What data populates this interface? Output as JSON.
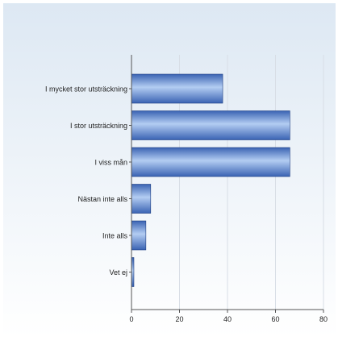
{
  "chart_data": {
    "type": "bar",
    "orientation": "horizontal",
    "title": "",
    "xlabel": "",
    "ylabel": "",
    "categories": [
      "I mycket stor utsträckning",
      "I stor utsträckning",
      "I viss mån",
      "Nästan inte alls",
      "Inte alls",
      "Vet ej"
    ],
    "values": [
      38,
      66,
      66,
      8,
      6,
      1
    ],
    "xlim": [
      0,
      80
    ],
    "xticks": [
      0,
      20,
      40,
      60,
      80
    ],
    "grid": true,
    "legend": "none",
    "colors": {
      "bar_dark": "#3a63b3",
      "bar_mid": "#6f98dc",
      "bar_light": "#b3cdf2",
      "bar_edge": "#1f3f82",
      "panel_top": "#dde8f3",
      "panel_bottom": "#ffffff",
      "axis": "#555555",
      "grid": "#d8dee6",
      "text": "#222222"
    }
  }
}
